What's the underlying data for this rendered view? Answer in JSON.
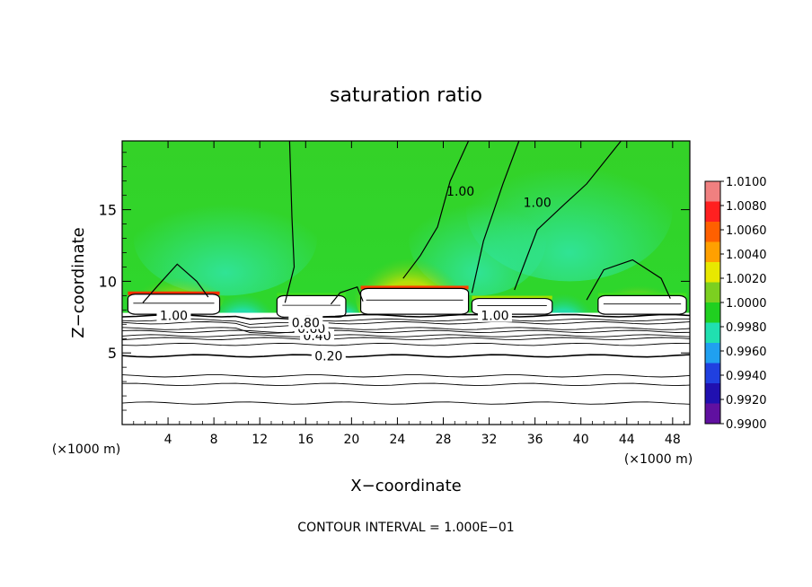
{
  "chart_data": {
    "type": "heatmap",
    "title": "saturation ratio",
    "xlabel": "X−coordinate",
    "ylabel": "Z−coordinate",
    "x_unit_left": "(×1000 m)",
    "x_unit_right": "(×1000 m)",
    "footer": "CONTOUR INTERVAL = 1.000E−01",
    "xlim": [
      0,
      49.5
    ],
    "ylim": [
      0,
      19.8
    ],
    "x_ticks": [
      4,
      8,
      12,
      16,
      20,
      24,
      28,
      32,
      36,
      40,
      44,
      48
    ],
    "x_tick_labels": [
      "4",
      "8",
      "12",
      "16",
      "20",
      "24",
      "28",
      "32",
      "36",
      "40",
      "44",
      "48"
    ],
    "y_ticks": [
      5,
      10,
      15
    ],
    "y_tick_labels": [
      "5",
      "10",
      "15"
    ],
    "colorbar": {
      "labels": [
        "1.0100",
        "1.0080",
        "1.0060",
        "1.0040",
        "1.0020",
        "1.0000",
        "0.9980",
        "0.9960",
        "0.9940",
        "0.9920",
        "0.9900"
      ],
      "colors": [
        "#f08080",
        "#ff2020",
        "#ff6000",
        "#ffa000",
        "#e8e800",
        "#7cd020",
        "#20d020",
        "#20e0b0",
        "#20a0f0",
        "#2040e0",
        "#2010b0",
        "#6010a0"
      ]
    },
    "subsaturated_top_z": 7.8,
    "contour_lines": [
      {
        "label": "0.20",
        "z": 4.8,
        "x": 18
      },
      {
        "label": "0.40",
        "z": 6.2,
        "x": 17
      },
      {
        "label": "0.60",
        "z": 6.7,
        "x": 16.5
      },
      {
        "label": "0.80",
        "z": 7.1,
        "x": 16
      },
      {
        "label": "1.00",
        "z": 7.6,
        "x": 4.5
      },
      {
        "label": "1.00",
        "z": 7.6,
        "x": 32.5
      },
      {
        "label": "1.00",
        "z": 15.5,
        "x": 36.2
      },
      {
        "label": "1.00",
        "z": 16.3,
        "x": 29.5
      }
    ],
    "cloud_regions": [
      {
        "x": [
          0.5,
          8.5
        ],
        "z": [
          7.7,
          9.1
        ],
        "color": "#ff3000"
      },
      {
        "x": [
          13.5,
          19.5
        ],
        "z": [
          7.5,
          9.0
        ],
        "color": "#40e020"
      },
      {
        "x": [
          20.8,
          30.2
        ],
        "z": [
          7.7,
          9.5
        ],
        "color": "#ff4000"
      },
      {
        "x": [
          30.5,
          37.5
        ],
        "z": [
          7.7,
          8.8
        ],
        "color": "#a0e000"
      },
      {
        "x": [
          41.5,
          49.2
        ],
        "z": [
          7.7,
          9.0
        ],
        "color": "#40e020"
      }
    ],
    "grid": false,
    "legend_placement": "right"
  }
}
